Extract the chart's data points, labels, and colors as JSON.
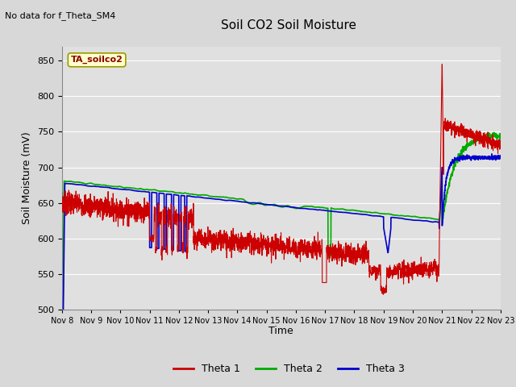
{
  "title": "Soil CO2 Soil Moisture",
  "no_data_text": "No data for f_Theta_SM4",
  "ylabel": "Soil Moisture (mV)",
  "xlabel": "Time",
  "annotation_box": "TA_soilco2",
  "ylim": [
    500,
    870
  ],
  "yticks": [
    500,
    550,
    600,
    650,
    700,
    750,
    800,
    850
  ],
  "x_labels": [
    "Nov 8",
    "Nov 9",
    "Nov 10",
    "Nov 11",
    "Nov 12",
    "Nov 13",
    "Nov 14",
    "Nov 15",
    "Nov 16",
    "Nov 17",
    "Nov 18",
    "Nov 19",
    "Nov 20",
    "Nov 21",
    "Nov 22",
    "Nov 23"
  ],
  "background_color": "#d8d8d8",
  "plot_bg_color": "#e0e0e0",
  "grid_color": "#ffffff",
  "theta1_color": "#cc0000",
  "theta2_color": "#00aa00",
  "theta3_color": "#0000cc",
  "legend_labels": [
    "Theta 1",
    "Theta 2",
    "Theta 3"
  ],
  "fig_width": 6.4,
  "fig_height": 4.8,
  "dpi": 100
}
